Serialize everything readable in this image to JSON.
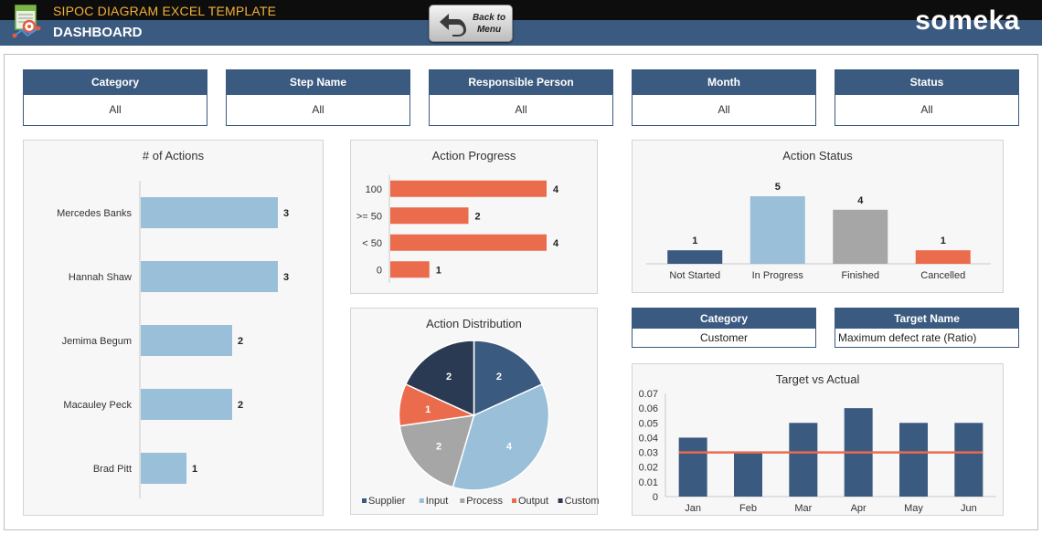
{
  "header": {
    "app_title": "SIPOC DIAGRAM EXCEL TEMPLATE",
    "page_title": "DASHBOARD",
    "back_button_label": "Back to Menu",
    "brand": "someka"
  },
  "filters": [
    {
      "label": "Category",
      "value": "All"
    },
    {
      "label": "Step Name",
      "value": "All"
    },
    {
      "label": "Responsible Person",
      "value": "All"
    },
    {
      "label": "Month",
      "value": "All"
    },
    {
      "label": "Status",
      "value": "All"
    }
  ],
  "info_boxes": {
    "category": {
      "label": "Category",
      "value": "Customer"
    },
    "target_name": {
      "label": "Target Name",
      "value": "Maximum defect rate (Ratio)"
    }
  },
  "colors": {
    "navy": "#3b5a80",
    "light_blue": "#99bfd9",
    "orange": "#eb6b4d",
    "grey": "#a6a6a6",
    "dark_navy": "#2a3a52",
    "title_gold": "#f2b13a"
  },
  "chart_data": [
    {
      "id": "actions",
      "type": "bar",
      "orientation": "horizontal",
      "title": "# of Actions",
      "categories": [
        "Mercedes Banks",
        "Hannah Shaw",
        "Jemima Begum",
        "Macauley Peck",
        "Brad Pitt"
      ],
      "values": [
        3,
        3,
        2,
        2,
        1
      ],
      "color": "#99bfd9",
      "xlim": [
        0,
        3
      ]
    },
    {
      "id": "progress",
      "type": "bar",
      "orientation": "horizontal",
      "title": "Action Progress",
      "categories": [
        "100",
        ">= 50",
        "< 50",
        "0"
      ],
      "values": [
        4,
        2,
        4,
        1
      ],
      "color": "#eb6b4d",
      "xlim": [
        0,
        4
      ]
    },
    {
      "id": "status",
      "type": "bar",
      "title": "Action Status",
      "categories": [
        "Not Started",
        "In Progress",
        "Finished",
        "Cancelled"
      ],
      "values": [
        1,
        5,
        4,
        1
      ],
      "colors": [
        "#3b5a80",
        "#99bfd9",
        "#a6a6a6",
        "#eb6b4d"
      ],
      "ylim": [
        0,
        5
      ]
    },
    {
      "id": "distribution",
      "type": "pie",
      "title": "Action Distribution",
      "labels": [
        "Supplier",
        "Input",
        "Process",
        "Output",
        "Customer"
      ],
      "values": [
        2,
        4,
        2,
        1,
        2
      ],
      "colors": [
        "#3b5a80",
        "#99bfd9",
        "#a6a6a6",
        "#eb6b4d",
        "#2a3a52"
      ],
      "legend": "bottom"
    },
    {
      "id": "target",
      "type": "bar",
      "title": "Target vs Actual",
      "categories": [
        "Jan",
        "Feb",
        "Mar",
        "Apr",
        "May",
        "Jun"
      ],
      "series": [
        {
          "type": "bar",
          "values": [
            0.04,
            0.03,
            0.05,
            0.06,
            0.05,
            0.05
          ],
          "color": "#3b5a80"
        },
        {
          "type": "line",
          "values": [
            0.03,
            0.03,
            0.03,
            0.03,
            0.03,
            0.03
          ],
          "color": "#eb6b4d"
        }
      ],
      "ylim": [
        0,
        0.07
      ],
      "yticks": [
        "0",
        "0.01",
        "0.02",
        "0.03",
        "0.04",
        "0.05",
        "0.06",
        "0.07"
      ]
    }
  ]
}
